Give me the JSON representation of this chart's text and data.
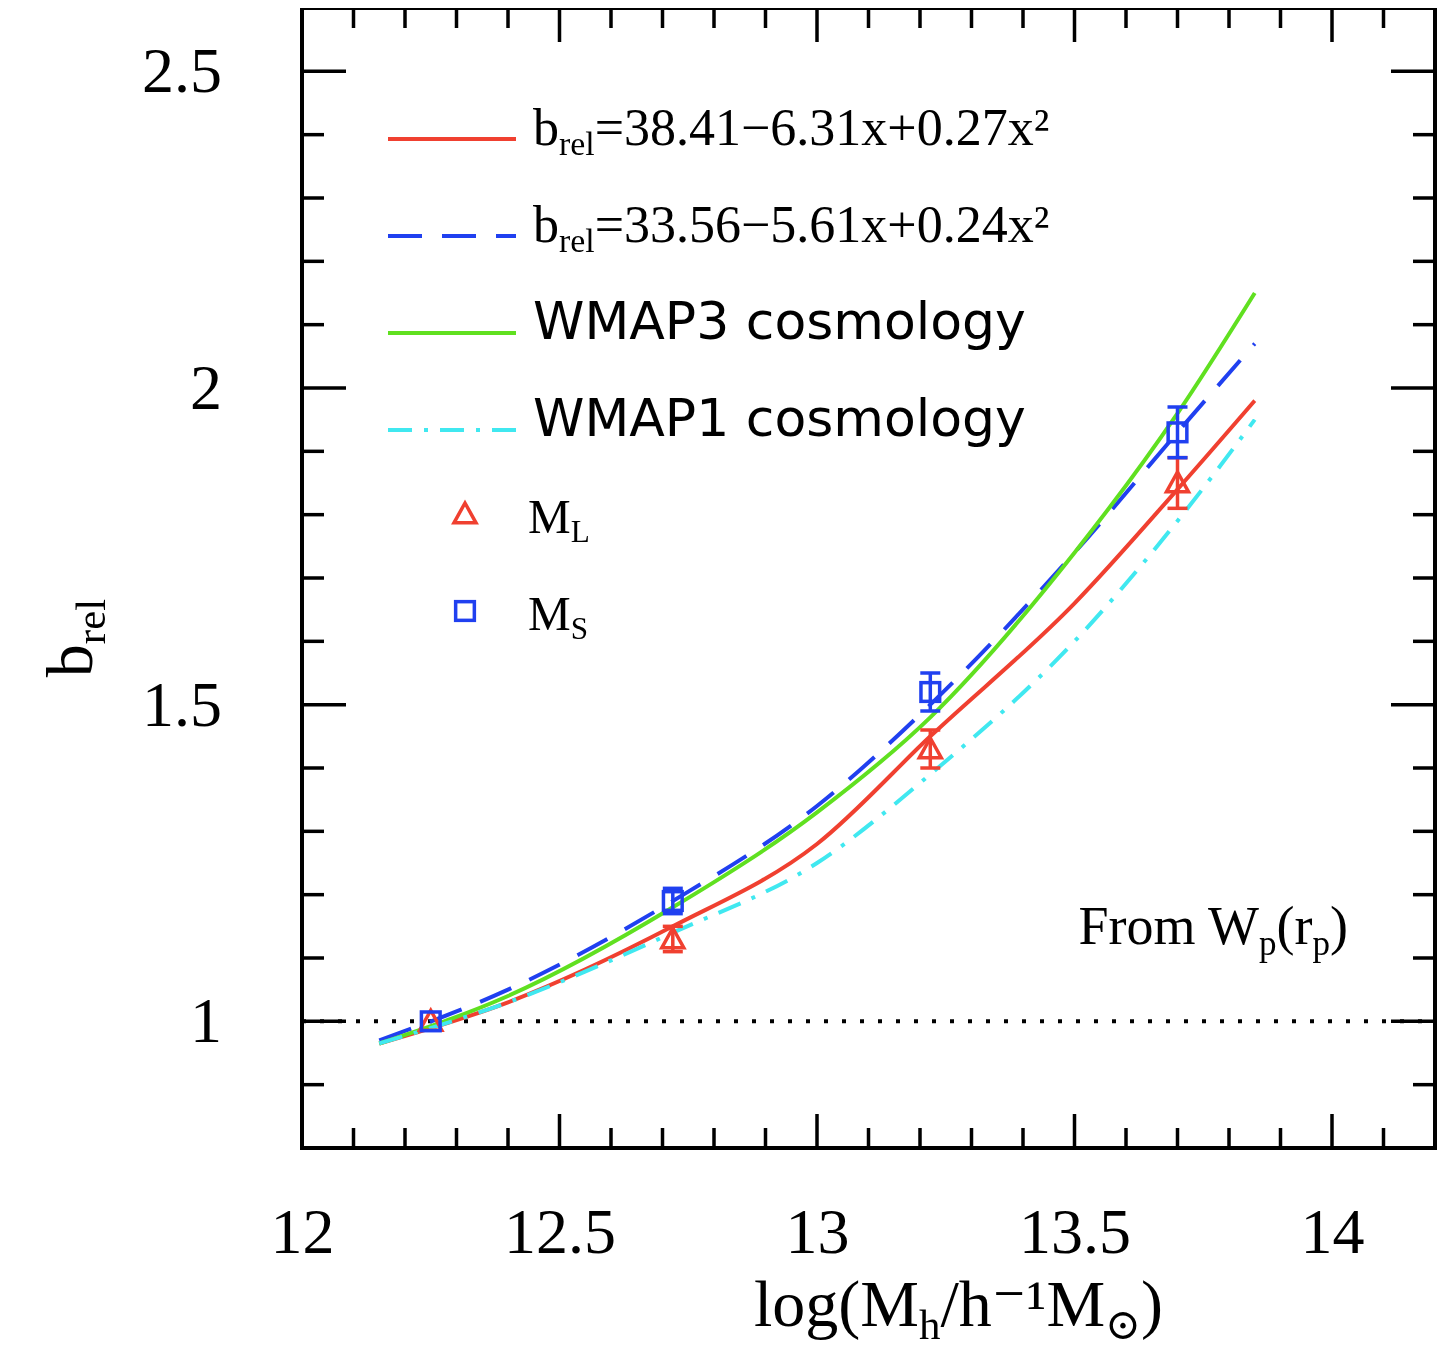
{
  "chart_data": {
    "type": "line",
    "xlabel": "log(M$_{h}$/h⁻¹M$_{⊙}$)",
    "ylabel": "b$_{rel}$",
    "xlim": [
      12,
      14.2
    ],
    "ylim": [
      0.8,
      2.6
    ],
    "xticks": [
      12,
      12.5,
      13,
      13.5,
      14
    ],
    "yticks": [
      1,
      1.5,
      2,
      2.5
    ],
    "legend": "top left",
    "grid": false,
    "series": [
      {
        "name": "b$_{rel}$=38.41−6.31x+0.27x²",
        "color": "#f04030",
        "line_style": "solid",
        "x": [
          12.15,
          12.4,
          12.72,
          13.0,
          13.22,
          13.5,
          13.7,
          13.85
        ],
        "values": [
          0.965,
          1.03,
          1.15,
          1.28,
          1.45,
          1.66,
          1.84,
          1.98
        ]
      },
      {
        "name": "b$_{rel}$=33.56−5.61x+0.24x²",
        "color": "#2040f0",
        "line_style": "dashed",
        "x": [
          12.15,
          12.4,
          12.72,
          13.0,
          13.22,
          13.5,
          13.7,
          13.85
        ],
        "values": [
          0.97,
          1.05,
          1.19,
          1.34,
          1.5,
          1.74,
          1.93,
          2.07
        ]
      },
      {
        "name": "WMAP3 cosmology",
        "color": "#60e020",
        "line_style": "solid",
        "x": [
          12.15,
          12.4,
          12.72,
          13.0,
          13.22,
          13.5,
          13.7,
          13.85
        ],
        "values": [
          0.965,
          1.04,
          1.18,
          1.33,
          1.48,
          1.74,
          1.96,
          2.15
        ]
      },
      {
        "name": "WMAP1 cosmology",
        "color": "#40e8f0",
        "line_style": "dashdot",
        "x": [
          12.15,
          12.4,
          12.72,
          13.0,
          13.22,
          13.5,
          13.7,
          13.85
        ],
        "values": [
          0.965,
          1.03,
          1.14,
          1.25,
          1.39,
          1.6,
          1.79,
          1.95
        ]
      },
      {
        "name": "M$_{L}$",
        "type": "scatter",
        "color": "#f04030",
        "marker": "triangle",
        "x": [
          12.25,
          12.72,
          13.22,
          13.7
        ],
        "values": [
          1.0,
          1.13,
          1.43,
          1.85
        ],
        "errors": [
          null,
          0.02,
          0.03,
          0.04
        ]
      },
      {
        "name": "M$_{S}$",
        "type": "scatter",
        "color": "#2040f0",
        "marker": "square",
        "x": [
          12.25,
          12.72,
          13.22,
          13.7
        ],
        "values": [
          1.0,
          1.19,
          1.52,
          1.93
        ],
        "errors": [
          null,
          0.02,
          0.03,
          0.04
        ]
      }
    ],
    "ref_lines": [
      {
        "axis": "y",
        "value": 1,
        "color": "#000000",
        "line_style": "dotted"
      }
    ],
    "annotations": [
      "From W$_{p}$(r$_{p}$)"
    ]
  }
}
